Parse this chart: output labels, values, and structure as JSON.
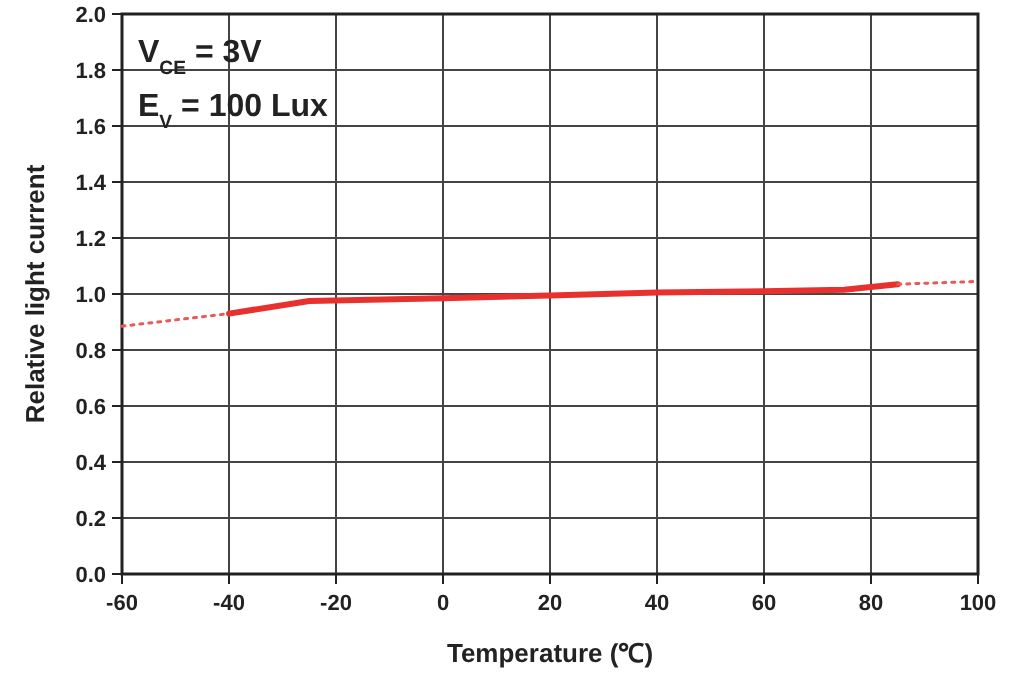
{
  "chart_data": {
    "type": "line",
    "xlabel": "Temperature (℃)",
    "ylabel": "Relative light current",
    "annotations": [
      "V$_{CE}$ = 3V",
      "E$_{V}$ = 100 Lux"
    ],
    "xlim": [
      -60,
      100
    ],
    "xticks": [
      -60,
      -40,
      -20,
      0,
      20,
      40,
      60,
      80,
      100
    ],
    "ylim": [
      0,
      2
    ],
    "yticks": [
      {
        "value": 0,
        "label": "0.0"
      },
      0.2,
      0.4,
      0.6,
      0.8,
      {
        "value": 1,
        "label": "1.0"
      },
      1.2,
      1.4,
      1.6,
      1.8,
      {
        "value": 2,
        "label": "2.0"
      }
    ],
    "grid": true,
    "marker": "none",
    "series": [
      {
        "color": "#e8312f",
        "line_style": "solid",
        "x": [
          -40,
          -25,
          0,
          20,
          40,
          60,
          75,
          85
        ],
        "values": [
          0.93,
          0.975,
          0.985,
          0.995,
          1.005,
          1.01,
          1.015,
          1.035
        ]
      },
      {
        "color": "#e85a5a",
        "line_style": "dotted",
        "x": [
          -60,
          -40
        ],
        "values": [
          0.885,
          0.93
        ]
      },
      {
        "color": "#e85a5a",
        "line_style": "dotted",
        "x": [
          85,
          100
        ],
        "values": [
          1.035,
          1.045
        ]
      }
    ]
  }
}
